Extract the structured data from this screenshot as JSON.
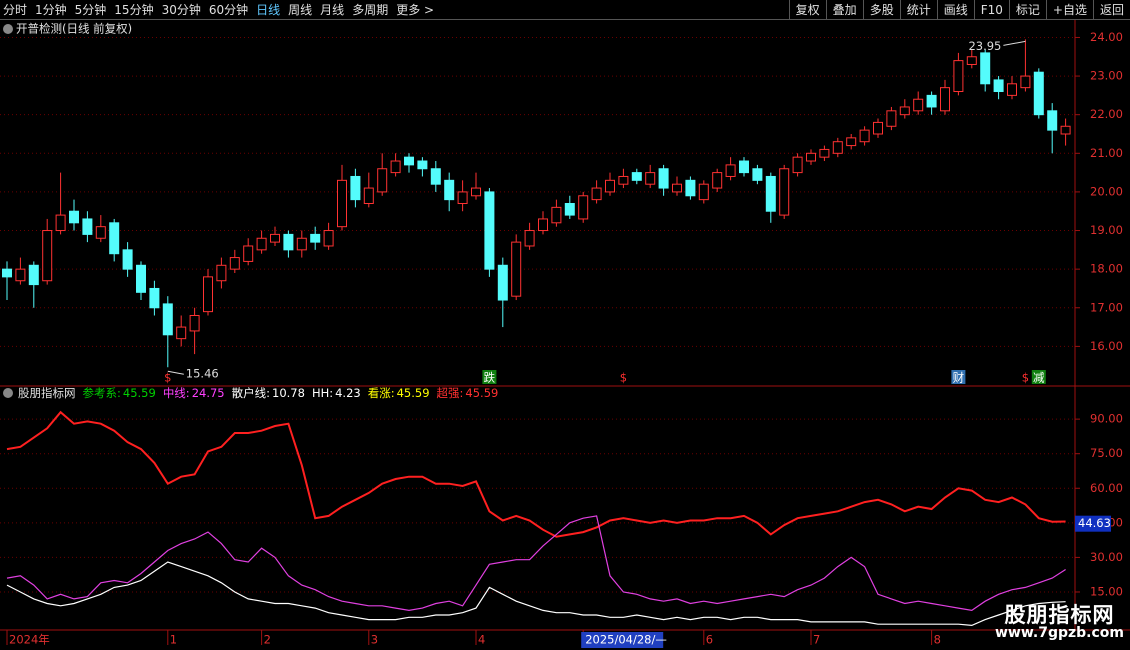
{
  "toolbar": {
    "left": [
      "分时",
      "1分钟",
      "5分钟",
      "15分钟",
      "30分钟",
      "60分钟",
      "日线",
      "周线",
      "月线",
      "多周期",
      "更多 >"
    ],
    "right": [
      "复权",
      "叠加",
      "多股",
      "统计",
      "画线",
      "F10",
      "标记",
      "+自选",
      "返回"
    ]
  },
  "watermark": {
    "title": "股朋指标网",
    "url": "www.7gpzb.com"
  },
  "chart_data": [
    {
      "type": "candlestick",
      "title": "开普检测(日线 前复权)",
      "up_color": "#ff3232",
      "down_color": "#54fcfc",
      "ylim": [
        15.0,
        24.4
      ],
      "yticks": [
        {
          "value": 16,
          "label": "16.00"
        },
        {
          "value": 17,
          "label": "17.00"
        },
        {
          "value": 18,
          "label": "18.00"
        },
        {
          "value": 19,
          "label": "19.00"
        },
        {
          "value": 20,
          "label": "20.00"
        },
        {
          "value": 21,
          "label": "21.00"
        },
        {
          "value": 22,
          "label": "22.00"
        },
        {
          "value": 23,
          "label": "23.00"
        },
        {
          "value": 24,
          "label": "24.00"
        }
      ],
      "grid": true,
      "open": [
        18.0,
        17.7,
        18.1,
        17.7,
        19.0,
        19.5,
        19.3,
        18.8,
        19.2,
        18.5,
        18.1,
        17.5,
        17.1,
        16.2,
        16.4,
        16.9,
        17.7,
        18.0,
        18.2,
        18.5,
        18.7,
        18.9,
        18.5,
        18.9,
        18.6,
        19.1,
        20.4,
        19.7,
        20.0,
        20.5,
        20.9,
        20.8,
        20.6,
        20.3,
        19.7,
        19.9,
        20.0,
        18.1,
        17.3,
        18.6,
        19.0,
        19.2,
        19.7,
        19.3,
        19.8,
        20.0,
        20.2,
        20.5,
        20.2,
        20.6,
        20.0,
        20.3,
        19.8,
        20.1,
        20.4,
        20.8,
        20.6,
        20.4,
        19.4,
        20.5,
        20.8,
        20.9,
        21.0,
        21.2,
        21.3,
        21.5,
        21.7,
        22.0,
        22.1,
        22.5,
        22.1,
        22.6,
        23.3,
        23.6,
        22.9,
        22.5,
        22.7,
        23.1,
        22.1,
        21.5
      ],
      "high": [
        18.2,
        18.3,
        18.2,
        19.3,
        20.5,
        19.8,
        19.5,
        19.4,
        19.3,
        18.7,
        18.2,
        17.7,
        17.3,
        16.8,
        17.0,
        18.0,
        18.3,
        18.5,
        18.8,
        19.0,
        19.1,
        19.0,
        19.0,
        19.1,
        19.2,
        20.7,
        20.6,
        20.5,
        21.0,
        21.0,
        21.0,
        20.9,
        20.8,
        20.5,
        20.3,
        20.5,
        20.1,
        18.3,
        18.9,
        19.2,
        19.5,
        19.8,
        19.9,
        20.0,
        20.3,
        20.5,
        20.6,
        20.6,
        20.7,
        20.7,
        20.4,
        20.4,
        20.3,
        20.6,
        20.9,
        20.9,
        20.7,
        20.5,
        20.7,
        21.0,
        21.1,
        21.2,
        21.4,
        21.5,
        21.7,
        21.9,
        22.2,
        22.4,
        22.6,
        22.6,
        22.9,
        23.6,
        23.7,
        23.7,
        23.0,
        23.0,
        23.95,
        23.2,
        22.3,
        21.9
      ],
      "low": [
        17.2,
        17.6,
        17.0,
        17.6,
        18.9,
        19.0,
        18.7,
        18.7,
        18.2,
        17.8,
        17.2,
        16.8,
        15.46,
        16.0,
        15.8,
        16.8,
        17.5,
        17.9,
        18.1,
        18.4,
        18.6,
        18.3,
        18.3,
        18.5,
        18.5,
        19.0,
        19.6,
        19.6,
        19.9,
        20.4,
        20.5,
        20.4,
        20.0,
        19.5,
        19.5,
        19.8,
        17.8,
        16.5,
        17.2,
        18.5,
        18.9,
        19.1,
        19.3,
        19.2,
        19.7,
        19.9,
        20.1,
        20.2,
        20.1,
        19.9,
        19.9,
        19.8,
        19.7,
        20.0,
        20.3,
        20.4,
        20.2,
        19.2,
        19.3,
        20.4,
        20.7,
        20.8,
        20.9,
        21.1,
        21.2,
        21.4,
        21.6,
        21.9,
        22.0,
        22.0,
        22.0,
        22.5,
        23.2,
        22.6,
        22.4,
        22.4,
        22.6,
        21.9,
        21.0,
        21.2
      ],
      "close": [
        17.8,
        18.0,
        17.6,
        19.0,
        19.4,
        19.2,
        18.9,
        19.1,
        18.4,
        18.0,
        17.4,
        17.0,
        16.3,
        16.5,
        16.8,
        17.8,
        18.1,
        18.3,
        18.6,
        18.8,
        18.9,
        18.5,
        18.8,
        18.7,
        19.0,
        20.3,
        19.8,
        20.1,
        20.6,
        20.8,
        20.7,
        20.6,
        20.2,
        19.8,
        20.0,
        20.1,
        18.0,
        17.2,
        18.7,
        19.0,
        19.3,
        19.6,
        19.4,
        19.9,
        20.1,
        20.3,
        20.4,
        20.3,
        20.5,
        20.1,
        20.2,
        19.9,
        20.2,
        20.5,
        20.7,
        20.5,
        20.3,
        19.5,
        20.6,
        20.9,
        21.0,
        21.1,
        21.3,
        21.4,
        21.6,
        21.8,
        22.1,
        22.2,
        22.4,
        22.2,
        22.7,
        23.4,
        23.5,
        22.8,
        22.6,
        22.8,
        23.0,
        22.0,
        21.6,
        21.7
      ],
      "annotations": [
        23.95,
        15.46
      ],
      "signals": [
        null,
        null,
        null,
        null,
        null,
        null,
        null,
        null,
        null,
        null,
        null,
        null,
        {
          "text": "$",
          "color": "#ff3030"
        },
        null,
        null,
        null,
        null,
        null,
        null,
        null,
        null,
        null,
        null,
        null,
        null,
        null,
        null,
        null,
        null,
        null,
        null,
        null,
        null,
        null,
        null,
        null,
        {
          "text": "跌",
          "color": "#ffffff",
          "background": "#108010"
        },
        null,
        null,
        null,
        null,
        null,
        null,
        null,
        null,
        null,
        {
          "text": "$",
          "color": "#ff3030"
        },
        null,
        null,
        null,
        null,
        null,
        null,
        null,
        null,
        null,
        null,
        null,
        null,
        null,
        null,
        null,
        null,
        null,
        null,
        null,
        null,
        null,
        null,
        null,
        null,
        {
          "text": "财",
          "color": "#ffffff",
          "background": "#3070b0"
        },
        null,
        null,
        null,
        null,
        {
          "text": "$",
          "color": "#ff3030"
        },
        {
          "text": "减",
          "color": "#ffffff",
          "background": "#108010"
        },
        null,
        null
      ]
    },
    {
      "type": "line",
      "title": "股朋指标网",
      "ylim": [
        -1.5,
        98.3
      ],
      "yticks": [
        {
          "value": 15,
          "label": "15.00"
        },
        {
          "value": 30,
          "label": "30.00"
        },
        {
          "value": 45,
          "label": "45.00"
        },
        {
          "value": 60,
          "label": "60.00"
        },
        {
          "value": 75,
          "label": "75.00"
        },
        {
          "value": 90,
          "label": "90.00"
        }
      ],
      "grid": true,
      "current_label": 44.63,
      "highlight_category": 43,
      "legend": [
        {
          "name": "参考系:",
          "value": 45.59,
          "color": "#00d000"
        },
        {
          "name": "中线:",
          "value": 24.75,
          "color": "#ff40ff"
        },
        {
          "name": "散户线:",
          "value": 10.78,
          "color": "#ffffff"
        },
        {
          "name": "HH:",
          "value": 4.23,
          "color": "#ffffff"
        },
        {
          "name": "看涨:",
          "value": 45.59,
          "color": "#ffff00"
        },
        {
          "name": "超强:",
          "value": 45.59,
          "color": "#ff3030"
        }
      ],
      "categories": [
        "2024年",
        null,
        null,
        null,
        null,
        null,
        null,
        null,
        null,
        null,
        null,
        null,
        "1",
        null,
        null,
        null,
        null,
        null,
        null,
        "2",
        null,
        null,
        null,
        null,
        null,
        null,
        null,
        "3",
        null,
        null,
        null,
        null,
        null,
        null,
        null,
        "4",
        null,
        null,
        null,
        null,
        null,
        null,
        null,
        "2025/04/28/—",
        null,
        null,
        null,
        null,
        null,
        null,
        null,
        null,
        "6",
        null,
        null,
        null,
        null,
        null,
        null,
        null,
        "7",
        null,
        null,
        null,
        null,
        null,
        null,
        null,
        null,
        "8",
        null,
        null,
        null,
        null,
        null,
        null,
        null,
        null,
        null,
        null
      ],
      "series": [
        {
          "color": "#ff2020",
          "values": [
            77,
            78,
            82,
            86,
            93,
            88,
            89,
            88,
            85,
            80,
            77,
            71,
            62,
            65,
            66,
            76,
            78,
            84,
            84,
            85,
            87,
            88,
            70,
            47,
            48,
            52,
            55,
            58,
            62,
            64,
            65,
            65,
            62,
            62,
            61,
            63,
            50,
            46,
            48,
            46,
            42,
            39,
            40,
            41,
            43,
            46,
            47,
            46,
            45,
            46,
            45,
            46,
            46,
            47,
            47,
            48,
            45,
            40,
            44,
            47,
            48,
            49,
            50,
            52,
            54,
            55,
            53,
            50,
            52,
            51,
            56,
            60,
            59,
            55,
            54,
            56,
            53,
            47,
            45.5,
            45.59
          ]
        },
        {
          "color": "#e040e0",
          "values": [
            21,
            22,
            18,
            12,
            14,
            12,
            13,
            19,
            20,
            19,
            23,
            28,
            33,
            36,
            38,
            41,
            36,
            29,
            28,
            34,
            30,
            22,
            18,
            16,
            13,
            11,
            10,
            9,
            9,
            8,
            7,
            8,
            10,
            11,
            9,
            18,
            27,
            28,
            29,
            29,
            35,
            40,
            45,
            47,
            48,
            22,
            15,
            14,
            12,
            11,
            12,
            10,
            11,
            10,
            11,
            12,
            13,
            14,
            13,
            16,
            18,
            21,
            26,
            30,
            26,
            14,
            12,
            10,
            11,
            10,
            9,
            8,
            7,
            11,
            14,
            16,
            17,
            19,
            21,
            24.75
          ]
        },
        {
          "color": "#ffffff",
          "values": [
            18,
            15,
            12,
            10,
            9,
            10,
            12,
            14,
            17,
            18,
            20,
            24,
            28,
            26,
            24,
            22,
            19,
            15,
            12,
            11,
            10,
            10,
            9,
            8,
            6,
            5,
            4,
            3,
            3,
            3,
            4,
            4,
            5,
            5,
            6,
            8,
            17,
            14,
            11,
            9,
            7,
            6,
            6,
            5,
            5,
            4,
            4,
            5,
            4,
            3,
            4,
            3,
            4,
            4,
            3,
            4,
            4,
            3,
            3,
            3,
            2,
            2,
            2,
            2,
            2,
            1,
            1,
            1,
            1,
            1,
            1,
            1,
            0.5,
            3,
            5,
            7,
            9,
            10,
            10.5,
            10.78
          ]
        }
      ]
    }
  ]
}
